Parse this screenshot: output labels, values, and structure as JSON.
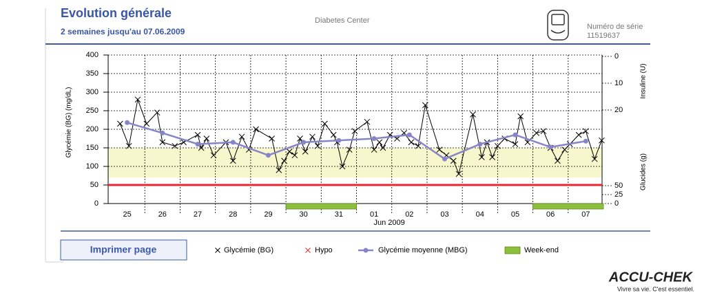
{
  "header": {
    "title": "Evolution générale",
    "subtitle": "2 semaines jusqu'au 07.06.2009",
    "center": "Diabetes Center",
    "serial_label": "Numéro de série",
    "serial": "11519637"
  },
  "button": "Imprimer page",
  "footer": {
    "brand": "ACCU-CHEK",
    "tagline": "Vivre sa vie. C'est essentiel."
  },
  "chart_data": {
    "type": "line",
    "y_label": "Glycémie (BG) (mg/dL)",
    "y2_label": "Insuline (U)",
    "y3_label": "Glucides (g)",
    "x_caption": "Jun 2009",
    "xlim": [
      0,
      14
    ],
    "xticks": [
      {
        "value": 0.5,
        "label": "25"
      },
      {
        "value": 1.5,
        "label": "26"
      },
      {
        "value": 2.5,
        "label": "27"
      },
      {
        "value": 3.5,
        "label": "28"
      },
      {
        "value": 4.5,
        "label": "29"
      },
      {
        "value": 5.5,
        "label": "30"
      },
      {
        "value": 6.5,
        "label": "31"
      },
      {
        "value": 7.5,
        "label": "01"
      },
      {
        "value": 8.5,
        "label": "02"
      },
      {
        "value": 9.5,
        "label": "03"
      },
      {
        "value": 10.5,
        "label": "04"
      },
      {
        "value": 11.5,
        "label": "05"
      },
      {
        "value": 12.5,
        "label": "06"
      },
      {
        "value": 13.5,
        "label": "07"
      }
    ],
    "ylim": [
      0,
      400
    ],
    "yticks": [
      0,
      50,
      100,
      150,
      200,
      250,
      300,
      350,
      400
    ],
    "y2lim": [
      0,
      20
    ],
    "y2ticks": [
      0,
      10,
      20
    ],
    "y3lim": [
      0,
      50
    ],
    "y3ticks": [
      0,
      25,
      50
    ],
    "grid": true,
    "target_range": [
      70,
      150
    ],
    "target_color": "#f8f6cc",
    "hypo": {
      "name": "Hypo",
      "color": "#e8262b",
      "threshold": 50
    },
    "weekend": {
      "name": "Week-end",
      "color": "#8dbf3c",
      "ranges": [
        [
          5,
          7
        ],
        [
          12,
          14
        ]
      ]
    },
    "series": [
      {
        "name": "Glycémie (BG)",
        "color": "#000000",
        "marker": "x",
        "x": [
          0.3,
          0.55,
          0.8,
          1.05,
          1.35,
          1.5,
          1.85,
          2.1,
          2.5,
          2.6,
          2.75,
          2.95,
          3.3,
          3.5,
          3.75,
          3.95,
          4.15,
          4.6,
          4.8,
          4.95,
          5.1,
          5.25,
          5.4,
          5.55,
          5.75,
          5.9,
          6.1,
          6.35,
          6.45,
          6.6,
          6.8,
          6.95,
          7.3,
          7.5,
          7.65,
          7.75,
          7.95,
          8.15,
          8.35,
          8.55,
          8.75,
          8.95,
          9.35,
          9.55,
          9.75,
          9.9,
          10.3,
          10.55,
          10.7,
          10.85,
          11.0,
          11.2,
          11.5,
          11.65,
          11.85,
          12.1,
          12.3,
          12.5,
          12.7,
          12.9,
          13.05,
          13.3,
          13.5,
          13.75,
          13.95
        ],
        "values": [
          215,
          155,
          280,
          215,
          245,
          165,
          155,
          165,
          185,
          150,
          175,
          130,
          165,
          115,
          180,
          145,
          200,
          175,
          90,
          115,
          140,
          130,
          175,
          140,
          180,
          155,
          215,
          185,
          165,
          100,
          145,
          195,
          220,
          145,
          165,
          150,
          185,
          175,
          190,
          165,
          155,
          265,
          145,
          130,
          115,
          80,
          240,
          125,
          165,
          125,
          155,
          175,
          160,
          235,
          165,
          190,
          195,
          150,
          115,
          145,
          160,
          185,
          195,
          120,
          170
        ]
      },
      {
        "name": "Glycémie moyenne (MBG)",
        "color": "#8884c8",
        "marker": "dot",
        "x": [
          0.5,
          1.5,
          2.5,
          3.5,
          4.5,
          5.5,
          6.5,
          7.5,
          8.5,
          9.5,
          10.5,
          11.5,
          12.5,
          13.5
        ],
        "values": [
          218,
          190,
          160,
          165,
          130,
          165,
          170,
          175,
          185,
          120,
          160,
          185,
          152,
          168
        ]
      }
    ]
  }
}
